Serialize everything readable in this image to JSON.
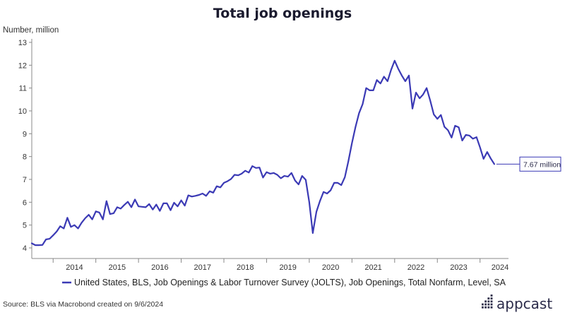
{
  "chart_data": {
    "type": "line",
    "title": "Total job openings",
    "ylabel": "Number, million",
    "ylim": [
      4,
      13
    ],
    "yticks": [
      4,
      5,
      6,
      7,
      8,
      9,
      10,
      11,
      12,
      13
    ],
    "xlim": [
      "2013-07",
      "2024-09"
    ],
    "xticks": [
      "2014",
      "2015",
      "2016",
      "2017",
      "2018",
      "2019",
      "2020",
      "2021",
      "2022",
      "2023",
      "2024"
    ],
    "grid": false,
    "line_color": "#3b3ab5",
    "legend_position": "bottom",
    "series": [
      {
        "name": "United States, BLS, Job Openings & Labor Turnover Survey (JOLTS), Job Openings, Total Nonfarm, Level, SA",
        "points": [
          [
            "2013-07",
            4.2
          ],
          [
            "2013-08",
            4.12
          ],
          [
            "2013-09",
            4.12
          ],
          [
            "2013-10",
            4.13
          ],
          [
            "2013-11",
            4.37
          ],
          [
            "2013-12",
            4.4
          ],
          [
            "2014-01",
            4.55
          ],
          [
            "2014-02",
            4.72
          ],
          [
            "2014-03",
            4.95
          ],
          [
            "2014-04",
            4.85
          ],
          [
            "2014-05",
            5.32
          ],
          [
            "2014-06",
            4.92
          ],
          [
            "2014-07",
            5.0
          ],
          [
            "2014-08",
            4.85
          ],
          [
            "2014-09",
            5.1
          ],
          [
            "2014-10",
            5.3
          ],
          [
            "2014-11",
            5.45
          ],
          [
            "2014-12",
            5.25
          ],
          [
            "2015-01",
            5.6
          ],
          [
            "2015-02",
            5.55
          ],
          [
            "2015-03",
            5.25
          ],
          [
            "2015-04",
            6.05
          ],
          [
            "2015-05",
            5.48
          ],
          [
            "2015-06",
            5.52
          ],
          [
            "2015-07",
            5.78
          ],
          [
            "2015-08",
            5.72
          ],
          [
            "2015-09",
            5.88
          ],
          [
            "2015-10",
            6.02
          ],
          [
            "2015-11",
            5.78
          ],
          [
            "2015-12",
            6.12
          ],
          [
            "2016-01",
            5.82
          ],
          [
            "2016-02",
            5.8
          ],
          [
            "2016-03",
            5.78
          ],
          [
            "2016-04",
            5.92
          ],
          [
            "2016-05",
            5.68
          ],
          [
            "2016-06",
            5.9
          ],
          [
            "2016-07",
            5.62
          ],
          [
            "2016-08",
            5.95
          ],
          [
            "2016-09",
            5.95
          ],
          [
            "2016-10",
            5.65
          ],
          [
            "2016-11",
            5.98
          ],
          [
            "2016-12",
            5.82
          ],
          [
            "2017-01",
            6.08
          ],
          [
            "2017-02",
            5.85
          ],
          [
            "2017-03",
            6.3
          ],
          [
            "2017-04",
            6.25
          ],
          [
            "2017-05",
            6.28
          ],
          [
            "2017-06",
            6.32
          ],
          [
            "2017-07",
            6.38
          ],
          [
            "2017-08",
            6.28
          ],
          [
            "2017-09",
            6.48
          ],
          [
            "2017-10",
            6.42
          ],
          [
            "2017-11",
            6.7
          ],
          [
            "2017-12",
            6.65
          ],
          [
            "2018-01",
            6.85
          ],
          [
            "2018-02",
            6.92
          ],
          [
            "2018-03",
            7.02
          ],
          [
            "2018-04",
            7.2
          ],
          [
            "2018-05",
            7.18
          ],
          [
            "2018-06",
            7.25
          ],
          [
            "2018-07",
            7.38
          ],
          [
            "2018-08",
            7.3
          ],
          [
            "2018-09",
            7.58
          ],
          [
            "2018-10",
            7.5
          ],
          [
            "2018-11",
            7.52
          ],
          [
            "2018-12",
            7.08
          ],
          [
            "2019-01",
            7.32
          ],
          [
            "2019-02",
            7.25
          ],
          [
            "2019-03",
            7.28
          ],
          [
            "2019-04",
            7.2
          ],
          [
            "2019-05",
            7.05
          ],
          [
            "2019-06",
            7.15
          ],
          [
            "2019-07",
            7.12
          ],
          [
            "2019-08",
            7.28
          ],
          [
            "2019-09",
            6.95
          ],
          [
            "2019-10",
            6.78
          ],
          [
            "2019-11",
            7.15
          ],
          [
            "2019-12",
            6.98
          ],
          [
            "2020-01",
            6.0
          ],
          [
            "2020-02",
            4.65
          ],
          [
            "2020-03",
            5.58
          ],
          [
            "2020-04",
            6.05
          ],
          [
            "2020-05",
            6.45
          ],
          [
            "2020-06",
            6.38
          ],
          [
            "2020-07",
            6.52
          ],
          [
            "2020-08",
            6.85
          ],
          [
            "2020-09",
            6.85
          ],
          [
            "2020-10",
            6.75
          ],
          [
            "2020-11",
            7.1
          ],
          [
            "2020-12",
            7.8
          ],
          [
            "2021-01",
            8.6
          ],
          [
            "2021-02",
            9.3
          ],
          [
            "2021-03",
            9.9
          ],
          [
            "2021-04",
            10.3
          ],
          [
            "2021-05",
            11.0
          ],
          [
            "2021-06",
            10.9
          ],
          [
            "2021-07",
            10.9
          ],
          [
            "2021-08",
            11.35
          ],
          [
            "2021-09",
            11.2
          ],
          [
            "2021-10",
            11.5
          ],
          [
            "2021-11",
            11.3
          ],
          [
            "2021-12",
            11.8
          ],
          [
            "2022-01",
            12.2
          ],
          [
            "2022-02",
            11.85
          ],
          [
            "2022-03",
            11.55
          ],
          [
            "2022-04",
            11.3
          ],
          [
            "2022-05",
            11.55
          ],
          [
            "2022-06",
            10.1
          ],
          [
            "2022-07",
            10.8
          ],
          [
            "2022-08",
            10.55
          ],
          [
            "2022-09",
            10.72
          ],
          [
            "2022-10",
            11.0
          ],
          [
            "2022-11",
            10.45
          ],
          [
            "2022-12",
            9.85
          ],
          [
            "2023-01",
            9.65
          ],
          [
            "2023-02",
            9.82
          ],
          [
            "2023-03",
            9.3
          ],
          [
            "2023-04",
            9.15
          ],
          [
            "2023-05",
            8.83
          ],
          [
            "2023-06",
            9.35
          ],
          [
            "2023-07",
            9.28
          ],
          [
            "2023-08",
            8.7
          ],
          [
            "2023-09",
            8.95
          ],
          [
            "2023-10",
            8.92
          ],
          [
            "2023-11",
            8.78
          ],
          [
            "2023-12",
            8.85
          ],
          [
            "2024-01",
            8.4
          ],
          [
            "2024-02",
            7.9
          ],
          [
            "2024-03",
            8.2
          ],
          [
            "2024-04",
            7.92
          ],
          [
            "2024-05",
            7.67
          ]
        ]
      }
    ],
    "annotation": {
      "text": "7.67 million",
      "value": 7.67
    }
  },
  "footer": {
    "source": "Source: BLS via Macrobond created on 9/6/2024",
    "brand": "appcast"
  }
}
